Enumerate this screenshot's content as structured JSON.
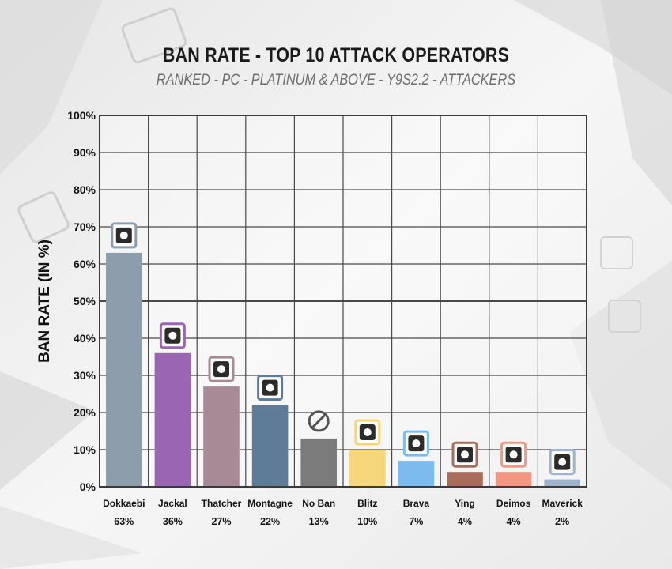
{
  "title": "BAN RATE - TOP 10 ATTACK OPERATORS",
  "subtitle": "RANKED - PC - PLATINUM & ABOVE - Y9S2.2 -  ATTACKERS",
  "chart_data": {
    "type": "bar",
    "title": "BAN RATE - TOP 10 ATTACK OPERATORS",
    "subtitle": "RANKED - PC - PLATINUM & ABOVE - Y9S2.2 -  ATTACKERS",
    "xlabel": "",
    "ylabel": "BAN RATE (IN %)",
    "ylim": [
      0,
      100
    ],
    "yticks": [
      "0%",
      "10%",
      "20%",
      "30%",
      "40%",
      "50%",
      "60%",
      "70%",
      "80%",
      "90%",
      "100%"
    ],
    "grid": true,
    "categories": [
      "Dokkaebi",
      "Jackal",
      "Thatcher",
      "Montagne",
      "No Ban",
      "Blitz",
      "Brava",
      "Ying",
      "Deimos",
      "Maverick"
    ],
    "values": [
      63,
      36,
      27,
      22,
      13,
      10,
      7,
      4,
      4,
      2
    ],
    "value_labels": [
      "63%",
      "36%",
      "27%",
      "22%",
      "13%",
      "10%",
      "7%",
      "4%",
      "4%",
      "2%"
    ],
    "colors": [
      "#8e9dab",
      "#9a66b4",
      "#a78a95",
      "#5e7b97",
      "#7b7b7b",
      "#f6d67a",
      "#7dbbee",
      "#a96d5c",
      "#f59682",
      "#9fb3cd"
    ],
    "icons": [
      "dokkaebi-icon",
      "jackal-icon",
      "thatcher-icon",
      "montagne-icon",
      "no-ban-icon",
      "blitz-icon",
      "brava-icon",
      "ying-icon",
      "deimos-icon",
      "maverick-icon"
    ]
  }
}
